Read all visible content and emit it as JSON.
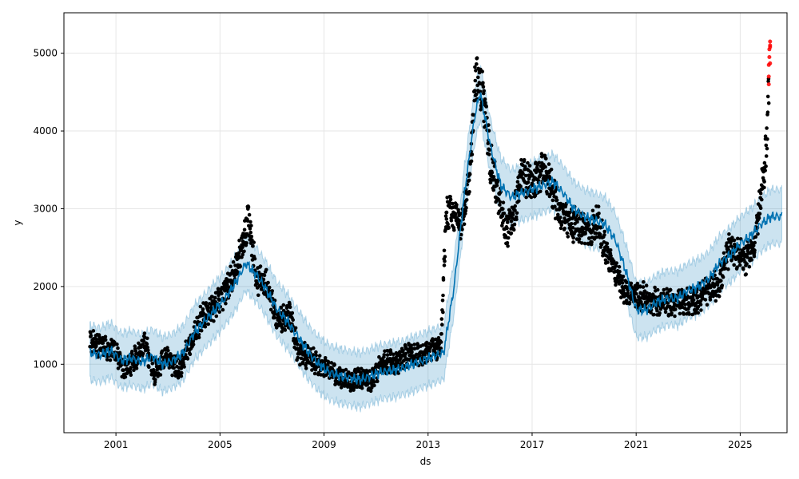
{
  "chart_data": {
    "type": "line",
    "title": "",
    "xlabel": "ds",
    "ylabel": "y",
    "xlim": [
      1999.0,
      2026.8
    ],
    "ylim": [
      120,
      5520
    ],
    "x_ticks": [
      2001,
      2005,
      2009,
      2013,
      2017,
      2021,
      2025
    ],
    "x_tick_labels": [
      "2001",
      "2005",
      "2009",
      "2013",
      "2017",
      "2021",
      "2025"
    ],
    "y_ticks": [
      1000,
      2000,
      3000,
      4000,
      5000
    ],
    "y_tick_labels": [
      "1000",
      "2000",
      "3000",
      "4000",
      "5000"
    ],
    "grid": true,
    "colors": {
      "forecast_line": "#0072B2",
      "uncertainty_band": "#0072B2",
      "observed": "#000000",
      "highlight": "#ff0000",
      "grid": "#e6e6e6"
    },
    "observed_anchors": {
      "x": [
        2000.0,
        2000.2,
        2000.6,
        2000.9,
        2001.3,
        2001.8,
        2002.1,
        2002.5,
        2002.9,
        2003.4,
        2003.9,
        2004.3,
        2004.8,
        2005.2,
        2005.6,
        2005.95,
        2006.1,
        2006.4,
        2006.8,
        2007.2,
        2007.7,
        2008.0,
        2008.4,
        2008.8,
        2009.3,
        2009.8,
        2010.3,
        2010.8,
        2011.3,
        2011.8,
        2012.3,
        2012.8,
        2013.2,
        2013.5,
        2013.7,
        2014.0,
        2014.3,
        2014.6,
        2014.8,
        2015.1,
        2015.4,
        2015.8,
        2016.0,
        2016.3,
        2016.6,
        2017.0,
        2017.4,
        2017.7,
        2018.0,
        2018.4,
        2018.8,
        2019.2,
        2019.5,
        2019.9,
        2020.3,
        2020.6,
        2021.0,
        2021.4,
        2021.8,
        2022.2,
        2022.6,
        2023.0,
        2023.4,
        2023.8,
        2024.2,
        2024.6,
        2024.9,
        2025.2,
        2025.5,
        2025.7,
        2025.9,
        2026.0,
        2026.1
      ],
      "y": [
        1250,
        1300,
        1180,
        1220,
        920,
        1100,
        1280,
        880,
        1100,
        930,
        1300,
        1600,
        1750,
        1950,
        2200,
        2650,
        2900,
        2100,
        2050,
        1550,
        1650,
        1150,
        1100,
        1000,
        900,
        780,
        820,
        770,
        1050,
        1000,
        1150,
        1100,
        1200,
        1250,
        2950,
        2900,
        2850,
        3300,
        4700,
        4500,
        3600,
        3000,
        2700,
        2900,
        3450,
        3300,
        3500,
        3350,
        3000,
        2800,
        2800,
        2700,
        2850,
        2400,
        2100,
        1950,
        1900,
        1850,
        1800,
        1800,
        1800,
        1800,
        1850,
        1950,
        2050,
        2500,
        2450,
        2350,
        2500,
        2900,
        3400,
        3800,
        4500
      ]
    },
    "highlight_anchors": {
      "x": [
        2026.1,
        2026.1,
        2026.1,
        2026.12,
        2026.12,
        2026.15,
        2026.15,
        2026.15,
        2026.15
      ],
      "y": [
        4600,
        4700,
        4850,
        4950,
        5050,
        5100,
        5150,
        5080,
        4870
      ]
    },
    "forecast_anchors": {
      "x": [
        2000.0,
        2000.4,
        2000.8,
        2001.2,
        2001.6,
        2002.0,
        2002.4,
        2002.8,
        2003.2,
        2003.6,
        2004.0,
        2004.4,
        2004.8,
        2005.2,
        2005.6,
        2006.0,
        2006.4,
        2006.8,
        2007.2,
        2007.6,
        2008.0,
        2008.4,
        2008.8,
        2009.2,
        2009.6,
        2010.0,
        2010.4,
        2010.8,
        2011.2,
        2011.6,
        2012.0,
        2012.4,
        2012.8,
        2013.2,
        2013.6,
        2014.0,
        2014.4,
        2014.8,
        2015.0,
        2015.4,
        2015.8,
        2016.2,
        2016.6,
        2017.0,
        2017.4,
        2017.8,
        2018.2,
        2018.6,
        2019.0,
        2019.4,
        2019.8,
        2020.2,
        2020.6,
        2021.0,
        2021.4,
        2021.8,
        2022.2,
        2022.6,
        2023.0,
        2023.4,
        2023.8,
        2024.2,
        2024.6,
        2025.0,
        2025.4,
        2025.8,
        2026.2,
        2026.6
      ],
      "y": [
        1150,
        1120,
        1180,
        1050,
        1080,
        1030,
        1100,
        1000,
        1050,
        1150,
        1400,
        1550,
        1700,
        1850,
        2050,
        2300,
        2150,
        1950,
        1700,
        1550,
        1350,
        1150,
        1000,
        900,
        850,
        820,
        800,
        850,
        900,
        920,
        950,
        1000,
        1050,
        1100,
        1150,
        2000,
        3200,
        4200,
        4500,
        3800,
        3300,
        3150,
        3200,
        3250,
        3300,
        3350,
        3200,
        3000,
        2900,
        2850,
        2800,
        2600,
        2200,
        1700,
        1700,
        1800,
        1850,
        1850,
        1950,
        2000,
        2100,
        2300,
        2400,
        2550,
        2650,
        2800,
        2900,
        2900
      ]
    },
    "band_halfwidth": 350
  }
}
